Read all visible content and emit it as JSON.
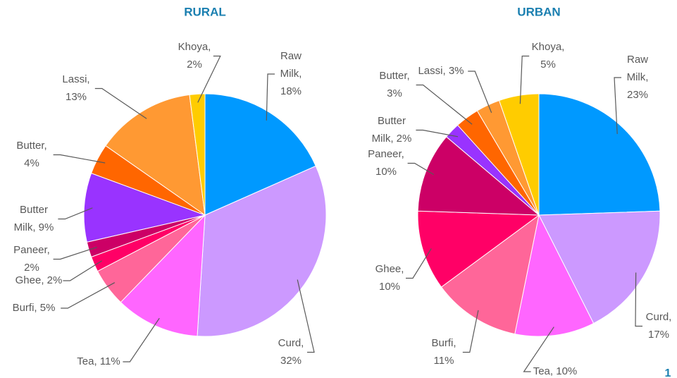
{
  "chart_data": [
    {
      "type": "pie",
      "title": "RURAL",
      "values": [
        18,
        32,
        11,
        5,
        2,
        2,
        9,
        4,
        13,
        2
      ],
      "value_labels": [
        "Raw Milk, 18%",
        "Curd, 32%",
        "Tea, 11%",
        "Burfi, 5%",
        "Ghee, 2%",
        "Paneer, 2%",
        "Butter Milk, 9%",
        "Butter, 4%",
        "Lassi, 13%",
        "Khoya, 2%"
      ],
      "colors": [
        "#0099ff",
        "#cc99ff",
        "#ff66ff",
        "#ff6699",
        "#ff0066",
        "#cc0066",
        "#9933ff",
        "#ff6600",
        "#ff9933",
        "#ffcc00"
      ]
    },
    {
      "type": "pie",
      "title": "URBAN",
      "values": [
        23,
        17,
        10,
        11,
        10,
        10,
        2,
        3,
        3,
        5
      ],
      "value_labels": [
        "Raw Milk, 23%",
        "Curd, 17%",
        "Tea, 10%",
        "Burfi, 11%",
        "Ghee, 10%",
        "Paneer, 10%",
        "Butter Milk, 2%",
        "Butter, 3%",
        "Lassi, 3%",
        "Khoya, 5%"
      ],
      "colors": [
        "#0099ff",
        "#cc99ff",
        "#ff66ff",
        "#ff6699",
        "#ff0066",
        "#cc0066",
        "#9933ff",
        "#ff6600",
        "#ff9933",
        "#ffcc00"
      ]
    }
  ],
  "page_number": "1"
}
